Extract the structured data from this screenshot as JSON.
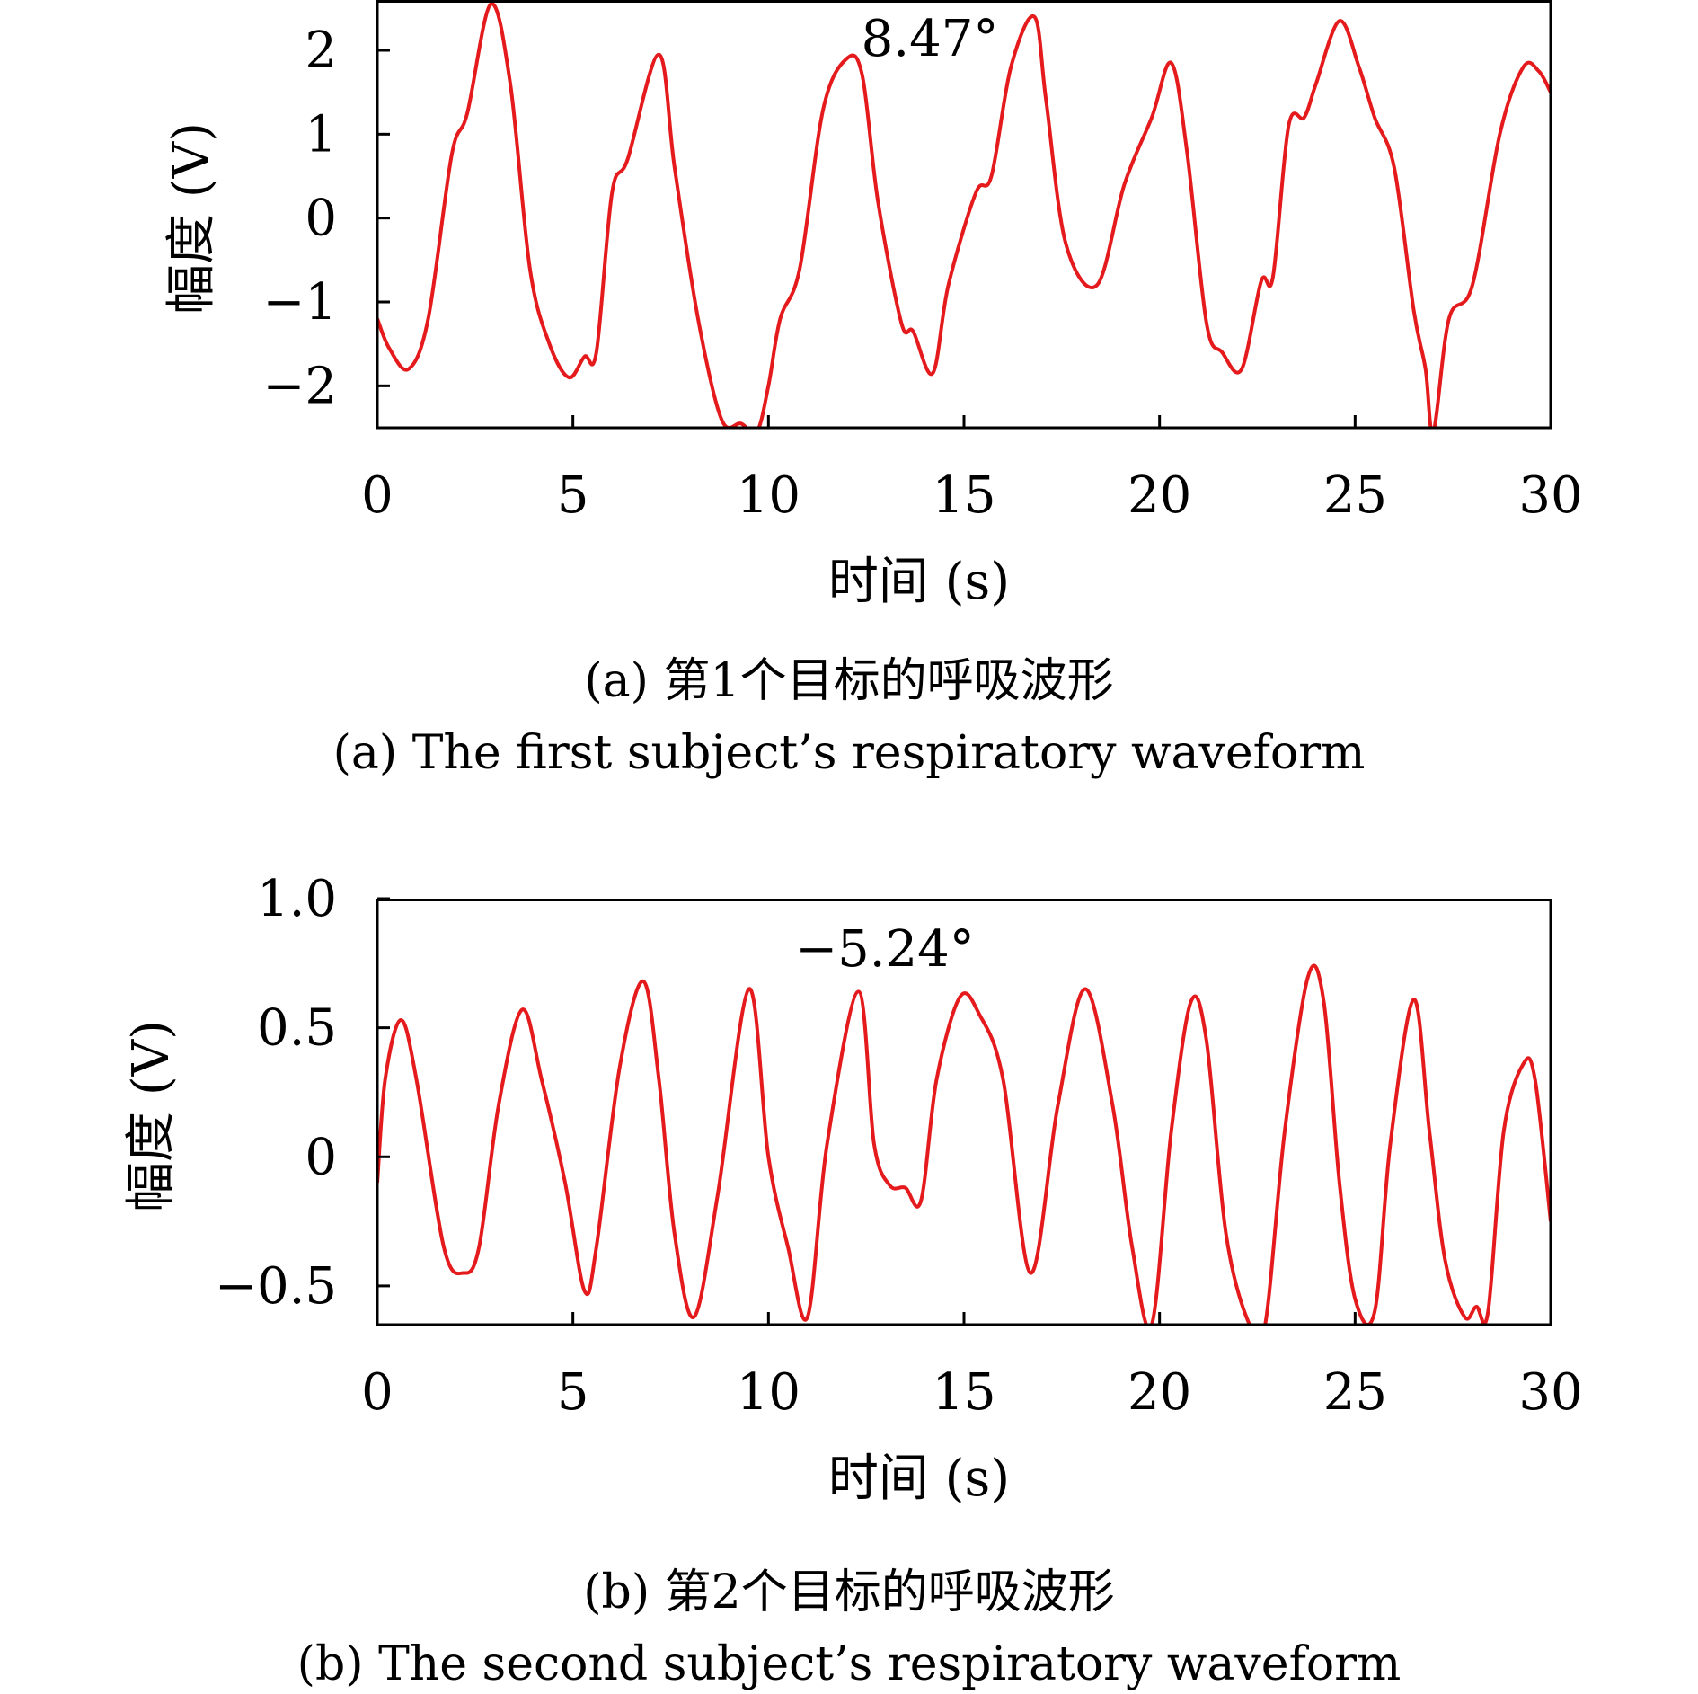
{
  "chart_data": [
    {
      "type": "line",
      "panel": "a",
      "caption_cn": "(a) 第1个目标的呼吸波形",
      "caption_en": "(a) The first subject’s respiratory waveform",
      "xlabel": "时间 (s)",
      "ylabel": "幅度 (V)",
      "annotation": "8.47°",
      "xlim": [
        0,
        30
      ],
      "ylim": [
        -2.5,
        2.6
      ],
      "xticks": [
        "0",
        "5",
        "10",
        "15",
        "20",
        "25",
        "30"
      ],
      "yticks": [
        "−2",
        "−1",
        "0",
        "1",
        "2"
      ],
      "ytick_values": [
        -2,
        -1,
        0,
        1,
        2
      ],
      "line_color": "#e41a1c",
      "x": [
        0,
        0.3,
        0.8,
        1.3,
        1.9,
        2.3,
        2.9,
        3.4,
        3.9,
        4.4,
        4.9,
        5.3,
        5.6,
        6.0,
        6.4,
        7.2,
        7.6,
        8.2,
        8.8,
        9.3,
        9.7,
        10.0,
        10.3,
        10.8,
        11.4,
        12.0,
        12.4,
        12.8,
        13.4,
        13.7,
        14.2,
        14.6,
        15.3,
        15.7,
        16.2,
        16.8,
        17.1,
        17.6,
        18.4,
        19.1,
        19.8,
        20.3,
        20.7,
        21.2,
        21.6,
        22.1,
        22.6,
        22.9,
        23.3,
        23.7,
        24.0,
        24.6,
        25.1,
        25.5,
        26.0,
        26.5,
        26.8,
        27.0,
        27.4,
        28.0,
        28.7,
        29.3,
        29.7,
        30.0
      ],
      "y": [
        -1.2,
        -1.55,
        -1.8,
        -1.2,
        0.75,
        1.25,
        2.55,
        1.6,
        -0.6,
        -1.5,
        -1.9,
        -1.65,
        -1.6,
        0.3,
        0.7,
        1.95,
        0.6,
        -1.2,
        -2.4,
        -2.45,
        -2.55,
        -2.0,
        -1.2,
        -0.6,
        1.3,
        1.9,
        1.7,
        0.2,
        -1.25,
        -1.35,
        -1.85,
        -0.8,
        0.3,
        0.5,
        1.8,
        2.4,
        1.4,
        -0.3,
        -0.8,
        0.4,
        1.2,
        1.85,
        0.8,
        -1.25,
        -1.6,
        -1.8,
        -0.75,
        -0.7,
        1.1,
        1.2,
        1.6,
        2.35,
        1.8,
        1.2,
        0.6,
        -1.1,
        -1.8,
        -2.55,
        -1.2,
        -0.8,
        1.0,
        1.8,
        1.75,
        1.5
      ]
    },
    {
      "type": "line",
      "panel": "b",
      "caption_cn": "(b) 第2个目标的呼吸波形",
      "caption_en": "(b) The second subject’s respiratory waveform",
      "xlabel": "时间 (s)",
      "ylabel": "幅度 (V)",
      "annotation": "−5.24°",
      "xlim": [
        0,
        30
      ],
      "ylim": [
        -0.65,
        1.0
      ],
      "xticks": [
        "0",
        "5",
        "10",
        "15",
        "20",
        "25",
        "30"
      ],
      "yticks": [
        "−0.5",
        "0",
        "0.5",
        "1.0"
      ],
      "ytick_values": [
        -0.5,
        0,
        0.5,
        1.0
      ],
      "line_color": "#e41a1c",
      "x": [
        0,
        0.2,
        0.6,
        1.0,
        1.7,
        2.2,
        2.6,
        3.1,
        3.7,
        4.2,
        4.8,
        5.3,
        5.6,
        6.2,
        6.8,
        7.2,
        7.6,
        8.1,
        8.7,
        9.5,
        10.0,
        10.5,
        11.0,
        11.5,
        12.3,
        12.7,
        13.1,
        13.5,
        13.9,
        14.3,
        14.9,
        15.4,
        16.0,
        16.7,
        17.4,
        18.1,
        18.8,
        19.3,
        19.8,
        20.3,
        20.8,
        21.2,
        21.7,
        22.3,
        22.7,
        23.2,
        23.8,
        24.2,
        24.6,
        25.0,
        25.5,
        25.9,
        26.5,
        26.9,
        27.3,
        27.8,
        28.1,
        28.4,
        28.8,
        29.3,
        29.6,
        30.0
      ],
      "y": [
        -0.1,
        0.3,
        0.53,
        0.3,
        -0.35,
        -0.45,
        -0.35,
        0.2,
        0.57,
        0.3,
        -0.1,
        -0.52,
        -0.35,
        0.35,
        0.68,
        0.3,
        -0.3,
        -0.62,
        -0.15,
        0.65,
        0.0,
        -0.35,
        -0.62,
        0.05,
        0.64,
        0.05,
        -0.11,
        -0.12,
        -0.17,
        0.3,
        0.62,
        0.55,
        0.3,
        -0.45,
        0.2,
        0.65,
        0.2,
        -0.35,
        -0.65,
        0.1,
        0.6,
        0.45,
        -0.3,
        -0.65,
        -0.65,
        0.1,
        0.7,
        0.6,
        -0.1,
        -0.55,
        -0.6,
        0.05,
        0.61,
        0.1,
        -0.4,
        -0.62,
        -0.58,
        -0.6,
        0.1,
        0.36,
        0.3,
        -0.25
      ]
    }
  ]
}
